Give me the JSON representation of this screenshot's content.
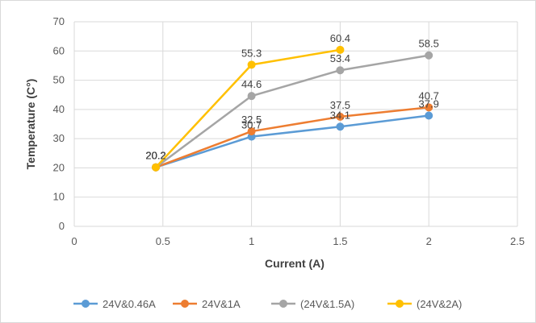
{
  "chart_data": {
    "type": "line",
    "xlabel": "Current (A)",
    "ylabel": "Temperature (C°)",
    "xlim": [
      0,
      2.5
    ],
    "ylim": [
      0,
      70
    ],
    "xticks": [
      "0",
      "0.5",
      "1",
      "1.5",
      "2",
      "2.5"
    ],
    "yticks": [
      "0",
      "10",
      "20",
      "30",
      "40",
      "50",
      "60",
      "70"
    ],
    "grid": true,
    "legend": "bottom",
    "series": [
      {
        "name": "24V&0.46A",
        "color": "#5b9bd5",
        "points": [
          [
            0.46,
            20.2
          ],
          [
            1,
            30.7
          ],
          [
            1.5,
            34.1
          ],
          [
            2,
            37.9
          ]
        ],
        "labels": [
          "20.2",
          "30.7",
          "34.1",
          "37.9"
        ]
      },
      {
        "name": "24V&1A",
        "color": "#ed7d31",
        "points": [
          [
            0.46,
            20.2
          ],
          [
            1,
            32.5
          ],
          [
            1.5,
            37.5
          ],
          [
            2,
            40.7
          ]
        ],
        "labels": [
          "20.2",
          "32.5",
          "37.5",
          "40.7"
        ]
      },
      {
        "name": "(24V&1.5A)",
        "color": "#a5a5a5",
        "points": [
          [
            0.46,
            20.2
          ],
          [
            1,
            44.6
          ],
          [
            1.5,
            53.4
          ],
          [
            2,
            58.5
          ]
        ],
        "labels": [
          "20.2",
          "44.6",
          "53.4",
          "58.5"
        ]
      },
      {
        "name": "(24V&2A)",
        "color": "#ffc000",
        "points": [
          [
            0.46,
            20.2
          ],
          [
            1,
            55.3
          ],
          [
            1.5,
            60.4
          ]
        ],
        "labels": [
          "20.2",
          "55.3",
          "60.4"
        ]
      }
    ]
  }
}
